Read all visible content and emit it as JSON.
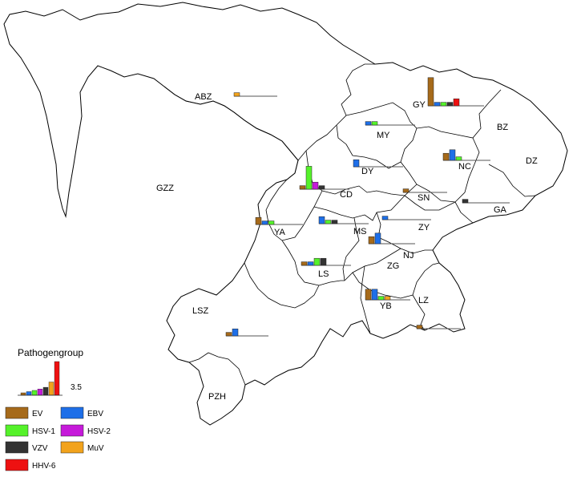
{
  "legend": {
    "title": "Pathogengroup",
    "scale_max_label": "3.5",
    "items": [
      {
        "label": "EV",
        "color": "#A66A1A"
      },
      {
        "label": "EBV",
        "color": "#1E6FE8"
      },
      {
        "label": "HSV-1",
        "color": "#55F22A"
      },
      {
        "label": "HSV-2",
        "color": "#C61ADA"
      },
      {
        "label": "VZV",
        "color": "#333333"
      },
      {
        "label": "MuV",
        "color": "#F2A31C"
      },
      {
        "label": "HHV-6",
        "color": "#EE1111"
      }
    ]
  },
  "regions": [
    {
      "label": "ABZ"
    },
    {
      "label": "GZZ"
    },
    {
      "label": "GY"
    },
    {
      "label": "BZ"
    },
    {
      "label": "DZ"
    },
    {
      "label": "MY"
    },
    {
      "label": "NC"
    },
    {
      "label": "DY"
    },
    {
      "label": "CD"
    },
    {
      "label": "SN"
    },
    {
      "label": "GA"
    },
    {
      "label": "YA"
    },
    {
      "label": "MS"
    },
    {
      "label": "ZY"
    },
    {
      "label": "NJ"
    },
    {
      "label": "ZG"
    },
    {
      "label": "LS"
    },
    {
      "label": "YB"
    },
    {
      "label": "LZ"
    },
    {
      "label": "LSZ"
    },
    {
      "label": "PZH"
    }
  ],
  "chart_data": {
    "type": "bar",
    "title": "",
    "scale_max": 3.5,
    "series_names": [
      "EV",
      "EBV",
      "HSV-1",
      "HSV-2",
      "VZV",
      "MuV",
      "HHV-6"
    ],
    "groups": [
      {
        "region": "GY",
        "values": {
          "EV": 3.2,
          "EBV": 0.4,
          "HSV-1": 0.4,
          "VZV": 0.4,
          "HHV-6": 0.8
        }
      },
      {
        "region": "ABZ",
        "values": {
          "MuV": 0.4
        }
      },
      {
        "region": "MY",
        "values": {
          "EBV": 0.4,
          "HSV-1": 0.4
        }
      },
      {
        "region": "NC",
        "values": {
          "EV": 0.8,
          "EBV": 1.2,
          "HSV-1": 0.4
        }
      },
      {
        "region": "DY",
        "values": {
          "EBV": 0.8
        }
      },
      {
        "region": "CD",
        "values": {
          "EV": 0.4,
          "HSV-1": 2.6,
          "HSV-2": 0.8,
          "VZV": 0.4
        }
      },
      {
        "region": "SN",
        "values": {
          "EV": 0.4
        }
      },
      {
        "region": "GA",
        "values": {
          "VZV": 0.4
        }
      },
      {
        "region": "YA",
        "values": {
          "EV": 0.8,
          "EBV": 0.4,
          "HSV-1": 0.4
        }
      },
      {
        "region": "MS",
        "values": {
          "EBV": 0.8,
          "HSV-1": 0.4,
          "VZV": 0.4
        }
      },
      {
        "region": "ZY",
        "values": {
          "EBV": 0.4
        }
      },
      {
        "region": "NJ",
        "values": {
          "EV": 0.8,
          "EBV": 1.2
        }
      },
      {
        "region": "LS",
        "values": {
          "EV": 0.4,
          "EBV": 0.4,
          "HSV-1": 0.8,
          "VZV": 0.8
        }
      },
      {
        "region": "YB",
        "values": {
          "EV": 1.2,
          "EBV": 1.2,
          "HSV-1": 0.4,
          "MuV": 0.4
        }
      },
      {
        "region": "LZ",
        "values": {
          "EV": 0.4
        }
      },
      {
        "region": "LSZ",
        "values": {
          "EV": 0.4,
          "EBV": 0.8
        }
      }
    ]
  }
}
